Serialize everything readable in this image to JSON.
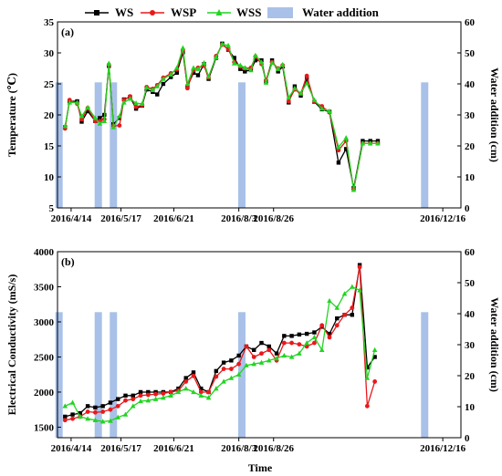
{
  "legend": {
    "ws": "WS",
    "wsp": "WSP",
    "wss": "WSS",
    "water": "Water addition"
  },
  "colors": {
    "ws": "#000000",
    "wsp": "#e8191b",
    "wss": "#22d422",
    "water": "#a9c1e8"
  },
  "x_axis_title": "Time",
  "chart_data": [
    {
      "type": "line",
      "panel_label": "(a)",
      "ylabel_left": "Temperature (℃)",
      "ylabel_right": "Water addition (cm)",
      "ylim_left": [
        5,
        35
      ],
      "yticks_left": [
        5,
        10,
        15,
        20,
        25,
        30,
        35
      ],
      "ylim_right": [
        0,
        60
      ],
      "yticks_right": [
        0,
        10,
        20,
        30,
        40,
        50,
        60
      ],
      "xlim": [
        "2016-04-05",
        "2016-12-28"
      ],
      "x_tick_labels": [
        "2016/4/14",
        "2016/5/17",
        "2016/6/21",
        "2016/8/3",
        "2016/8/26",
        "2016/12/16"
      ],
      "x_tick_dates": [
        "2016-04-14",
        "2016-05-17",
        "2016-06-21",
        "2016-08-03",
        "2016-08-26",
        "2016-12-16"
      ],
      "series": [
        {
          "name": "WS",
          "marker": "square",
          "x": [
            "2016-04-10",
            "2016-04-13",
            "2016-04-18",
            "2016-04-21",
            "2016-04-25",
            "2016-04-30",
            "2016-05-03",
            "2016-05-06",
            "2016-05-09",
            "2016-05-12",
            "2016-05-16",
            "2016-05-19",
            "2016-05-23",
            "2016-05-27",
            "2016-05-31",
            "2016-06-03",
            "2016-06-07",
            "2016-06-10",
            "2016-06-14",
            "2016-06-19",
            "2016-06-23",
            "2016-06-27",
            "2016-06-30",
            "2016-07-04",
            "2016-07-07",
            "2016-07-11",
            "2016-07-14",
            "2016-07-19",
            "2016-07-23",
            "2016-07-27",
            "2016-07-31",
            "2016-08-04",
            "2016-08-07",
            "2016-08-11",
            "2016-08-14",
            "2016-08-18",
            "2016-08-21",
            "2016-08-25",
            "2016-08-29",
            "2016-09-01",
            "2016-09-05",
            "2016-09-09",
            "2016-09-13",
            "2016-09-17",
            "2016-09-22",
            "2016-09-27",
            "2016-10-02",
            "2016-10-08",
            "2016-10-13",
            "2016-10-18",
            "2016-10-24",
            "2016-10-29",
            "2016-11-03"
          ],
          "y": [
            18.0,
            22.2,
            22.2,
            18.9,
            20.6,
            19.0,
            19.5,
            20.0,
            27.9,
            18.5,
            19.5,
            22.5,
            22.9,
            21.0,
            21.5,
            24.1,
            23.7,
            23.3,
            25.0,
            26.1,
            26.8,
            30.1,
            24.6,
            26.8,
            26.4,
            28.2,
            25.8,
            29.2,
            31.5,
            30.5,
            29.2,
            27.4,
            27.0,
            27.3,
            28.8,
            28.8,
            25.4,
            28.8,
            27.0,
            27.8,
            22.0,
            24.6,
            23.1,
            25.8,
            22.1,
            20.9,
            20.5,
            12.3,
            14.5,
            8.2,
            15.8,
            15.8,
            15.8
          ]
        },
        {
          "name": "WSP",
          "marker": "circle",
          "x": [
            "2016-04-10",
            "2016-04-13",
            "2016-04-18",
            "2016-04-21",
            "2016-04-25",
            "2016-04-30",
            "2016-05-03",
            "2016-05-06",
            "2016-05-09",
            "2016-05-12",
            "2016-05-16",
            "2016-05-19",
            "2016-05-23",
            "2016-05-27",
            "2016-05-31",
            "2016-06-03",
            "2016-06-07",
            "2016-06-10",
            "2016-06-14",
            "2016-06-19",
            "2016-06-23",
            "2016-06-27",
            "2016-06-30",
            "2016-07-04",
            "2016-07-07",
            "2016-07-11",
            "2016-07-14",
            "2016-07-19",
            "2016-07-23",
            "2016-07-27",
            "2016-07-31",
            "2016-08-04",
            "2016-08-07",
            "2016-08-11",
            "2016-08-14",
            "2016-08-18",
            "2016-08-21",
            "2016-08-25",
            "2016-08-29",
            "2016-09-01",
            "2016-09-05",
            "2016-09-09",
            "2016-09-13",
            "2016-09-17",
            "2016-09-22",
            "2016-09-27",
            "2016-10-02",
            "2016-10-08",
            "2016-10-13",
            "2016-10-18",
            "2016-10-24",
            "2016-10-29",
            "2016-11-03"
          ],
          "y": [
            17.8,
            22.4,
            21.8,
            19.3,
            21.1,
            19.0,
            19.0,
            19.3,
            28.1,
            18.2,
            18.3,
            22.4,
            23.0,
            21.3,
            21.6,
            24.5,
            24.2,
            24.8,
            26.0,
            26.7,
            27.3,
            30.5,
            24.3,
            27.2,
            27.6,
            27.9,
            26.0,
            29.5,
            31.3,
            30.6,
            28.5,
            27.8,
            27.5,
            27.6,
            29.4,
            28.2,
            25.6,
            28.5,
            27.5,
            28.0,
            22.2,
            24.1,
            23.4,
            26.3,
            22.1,
            21.4,
            20.4,
            14.3,
            15.8,
            8.0,
            15.4,
            15.4,
            15.4
          ]
        },
        {
          "name": "WSS",
          "marker": "triangle",
          "x": [
            "2016-04-10",
            "2016-04-13",
            "2016-04-18",
            "2016-04-21",
            "2016-04-25",
            "2016-04-30",
            "2016-05-03",
            "2016-05-06",
            "2016-05-09",
            "2016-05-12",
            "2016-05-16",
            "2016-05-19",
            "2016-05-23",
            "2016-05-27",
            "2016-05-31",
            "2016-06-03",
            "2016-06-07",
            "2016-06-10",
            "2016-06-14",
            "2016-06-19",
            "2016-06-23",
            "2016-06-27",
            "2016-06-30",
            "2016-07-04",
            "2016-07-07",
            "2016-07-11",
            "2016-07-14",
            "2016-07-19",
            "2016-07-23",
            "2016-07-27",
            "2016-07-31",
            "2016-08-04",
            "2016-08-07",
            "2016-08-11",
            "2016-08-14",
            "2016-08-18",
            "2016-08-21",
            "2016-08-25",
            "2016-08-29",
            "2016-09-01",
            "2016-09-05",
            "2016-09-09",
            "2016-09-13",
            "2016-09-17",
            "2016-09-22",
            "2016-09-27",
            "2016-10-02",
            "2016-10-08",
            "2016-10-13",
            "2016-10-18",
            "2016-10-24",
            "2016-10-29",
            "2016-11-03"
          ],
          "y": [
            18.2,
            22.0,
            22.0,
            19.8,
            21.2,
            19.5,
            18.6,
            19.0,
            28.3,
            18.0,
            19.8,
            22.0,
            22.6,
            21.9,
            21.8,
            24.4,
            24.0,
            24.6,
            25.8,
            26.5,
            27.6,
            30.8,
            25.0,
            27.6,
            27.4,
            28.4,
            26.2,
            29.3,
            31.4,
            31.2,
            28.3,
            28.0,
            27.6,
            27.2,
            29.6,
            28.5,
            25.2,
            28.4,
            27.4,
            28.1,
            22.8,
            24.3,
            23.5,
            25.1,
            22.4,
            21.0,
            20.6,
            14.8,
            16.3,
            7.9,
            15.4,
            15.4,
            15.4
          ]
        }
      ],
      "water_addition": {
        "x": [
          "2016-04-06",
          "2016-05-02",
          "2016-05-12",
          "2016-08-05",
          "2016-12-04"
        ],
        "y": [
          40.5,
          40.5,
          40.5,
          40.5,
          40.5
        ]
      }
    },
    {
      "type": "line",
      "panel_label": "(b)",
      "ylabel_left": "Electrical Conductivity (mS/s)",
      "ylabel_right": "Water addition (cm)",
      "ylim_left": [
        1350,
        4000
      ],
      "yticks_left": [
        1500,
        2000,
        2500,
        3000,
        3500,
        4000
      ],
      "ylim_right": [
        0,
        60
      ],
      "yticks_right": [
        0,
        10,
        20,
        30,
        40,
        50,
        60
      ],
      "xlim": [
        "2016-04-05",
        "2016-12-28"
      ],
      "x_tick_labels": [
        "2016/4/14",
        "2016/5/17",
        "2016/6/21",
        "2016/8/3",
        "2016/8/26",
        "2016/12/16"
      ],
      "x_tick_dates": [
        "2016-04-14",
        "2016-05-17",
        "2016-06-21",
        "2016-08-03",
        "2016-08-26",
        "2016-12-16"
      ],
      "series": [
        {
          "name": "WS",
          "marker": "square",
          "x": [
            "2016-04-10",
            "2016-04-15",
            "2016-04-20",
            "2016-04-25",
            "2016-04-30",
            "2016-05-05",
            "2016-05-10",
            "2016-05-15",
            "2016-05-20",
            "2016-05-25",
            "2016-05-30",
            "2016-06-04",
            "2016-06-09",
            "2016-06-14",
            "2016-06-19",
            "2016-06-24",
            "2016-06-29",
            "2016-07-04",
            "2016-07-09",
            "2016-07-14",
            "2016-07-19",
            "2016-07-24",
            "2016-07-29",
            "2016-08-03",
            "2016-08-08",
            "2016-08-13",
            "2016-08-18",
            "2016-08-23",
            "2016-08-28",
            "2016-09-02",
            "2016-09-07",
            "2016-09-12",
            "2016-09-17",
            "2016-09-22",
            "2016-09-27",
            "2016-10-02",
            "2016-10-07",
            "2016-10-12",
            "2016-10-17",
            "2016-10-22",
            "2016-10-27",
            "2016-11-01"
          ],
          "y": [
            1650,
            1680,
            1700,
            1800,
            1780,
            1800,
            1850,
            1900,
            1950,
            1950,
            2000,
            2000,
            2000,
            2000,
            2000,
            2050,
            2200,
            2280,
            2050,
            2000,
            2300,
            2420,
            2450,
            2520,
            2650,
            2600,
            2700,
            2650,
            2550,
            2800,
            2800,
            2820,
            2830,
            2850,
            2930,
            2830,
            3050,
            3100,
            3100,
            3810,
            2350,
            2500
          ]
        },
        {
          "name": "WSP",
          "marker": "circle",
          "x": [
            "2016-04-10",
            "2016-04-15",
            "2016-04-20",
            "2016-04-25",
            "2016-04-30",
            "2016-05-05",
            "2016-05-10",
            "2016-05-15",
            "2016-05-20",
            "2016-05-25",
            "2016-05-30",
            "2016-06-04",
            "2016-06-09",
            "2016-06-14",
            "2016-06-19",
            "2016-06-24",
            "2016-06-29",
            "2016-07-04",
            "2016-07-09",
            "2016-07-14",
            "2016-07-19",
            "2016-07-24",
            "2016-07-29",
            "2016-08-03",
            "2016-08-08",
            "2016-08-13",
            "2016-08-18",
            "2016-08-23",
            "2016-08-28",
            "2016-09-02",
            "2016-09-07",
            "2016-09-12",
            "2016-09-17",
            "2016-09-22",
            "2016-09-27",
            "2016-10-02",
            "2016-10-07",
            "2016-10-12",
            "2016-10-17",
            "2016-10-22",
            "2016-10-27",
            "2016-11-01"
          ],
          "y": [
            1600,
            1620,
            1650,
            1720,
            1710,
            1720,
            1750,
            1800,
            1880,
            1900,
            1950,
            1960,
            1970,
            1980,
            2000,
            2020,
            2150,
            2230,
            2000,
            2000,
            2220,
            2330,
            2330,
            2400,
            2650,
            2500,
            2550,
            2600,
            2450,
            2700,
            2700,
            2680,
            2650,
            2700,
            2950,
            2780,
            2950,
            3100,
            3200,
            3780,
            1800,
            2150
          ]
        },
        {
          "name": "WSS",
          "marker": "triangle",
          "x": [
            "2016-04-10",
            "2016-04-15",
            "2016-04-20",
            "2016-04-25",
            "2016-04-30",
            "2016-05-05",
            "2016-05-10",
            "2016-05-15",
            "2016-05-20",
            "2016-05-25",
            "2016-05-30",
            "2016-06-04",
            "2016-06-09",
            "2016-06-14",
            "2016-06-19",
            "2016-06-24",
            "2016-06-29",
            "2016-07-04",
            "2016-07-09",
            "2016-07-14",
            "2016-07-19",
            "2016-07-24",
            "2016-07-29",
            "2016-08-03",
            "2016-08-08",
            "2016-08-13",
            "2016-08-18",
            "2016-08-23",
            "2016-08-28",
            "2016-09-02",
            "2016-09-07",
            "2016-09-12",
            "2016-09-17",
            "2016-09-22",
            "2016-09-27",
            "2016-10-02",
            "2016-10-07",
            "2016-10-12",
            "2016-10-17",
            "2016-10-22",
            "2016-10-27",
            "2016-11-01"
          ],
          "y": [
            1800,
            1850,
            1650,
            1620,
            1600,
            1580,
            1590,
            1640,
            1680,
            1800,
            1870,
            1880,
            1900,
            1920,
            1950,
            2000,
            2050,
            2000,
            1950,
            1920,
            2050,
            2150,
            2200,
            2250,
            2380,
            2400,
            2420,
            2450,
            2480,
            2520,
            2500,
            2550,
            2700,
            2780,
            2600,
            3300,
            3200,
            3400,
            3500,
            3450,
            2200,
            2600
          ]
        }
      ],
      "water_addition": {
        "x": [
          "2016-04-06",
          "2016-05-02",
          "2016-05-12",
          "2016-08-05",
          "2016-12-04"
        ],
        "y": [
          40.5,
          40.5,
          40.5,
          40.5,
          40.5
        ]
      }
    }
  ]
}
